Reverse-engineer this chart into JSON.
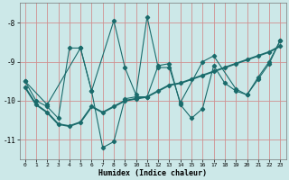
{
  "xlabel": "Humidex (Indice chaleur)",
  "bg_color": "#cce8e8",
  "grid_color": "#d09090",
  "line_color": "#1a6b6b",
  "xlim": [
    -0.5,
    23.5
  ],
  "ylim": [
    -11.5,
    -7.5
  ],
  "yticks": [
    -11,
    -10,
    -9,
    -8
  ],
  "xticks": [
    0,
    1,
    2,
    3,
    4,
    5,
    6,
    7,
    8,
    9,
    10,
    11,
    12,
    13,
    14,
    15,
    16,
    17,
    18,
    19,
    20,
    21,
    22,
    23
  ],
  "series1_x": [
    0,
    1,
    2,
    3,
    4,
    5,
    6,
    7,
    8,
    9,
    10,
    11,
    12,
    13,
    14,
    15,
    16,
    17,
    18,
    19,
    20,
    21,
    22,
    23
  ],
  "series1_y": [
    -9.5,
    -10.0,
    -10.15,
    -10.45,
    -8.65,
    -8.65,
    -9.75,
    -11.2,
    -11.05,
    -9.95,
    -9.9,
    -9.9,
    -9.1,
    -9.05,
    -10.1,
    -10.45,
    -10.2,
    -9.1,
    -9.55,
    -9.75,
    -9.85,
    -9.45,
    -9.05,
    -8.45
  ],
  "series2_x": [
    0,
    1,
    2,
    3,
    4,
    5,
    6,
    7,
    8,
    9,
    10,
    11,
    12,
    13,
    14,
    15,
    16,
    17,
    18,
    19,
    20,
    21,
    22,
    23
  ],
  "series2_y": [
    -9.65,
    -10.1,
    -10.3,
    -10.6,
    -10.65,
    -10.55,
    -10.15,
    -10.3,
    -10.15,
    -10.0,
    -9.95,
    -9.9,
    -9.75,
    -9.6,
    -9.55,
    -9.45,
    -9.35,
    -9.25,
    -9.15,
    -9.05,
    -8.95,
    -8.85,
    -8.75,
    -8.6
  ],
  "series3_x": [
    0,
    2,
    5,
    6,
    8,
    9,
    10,
    11,
    12,
    13,
    14,
    16,
    17,
    19,
    20,
    21,
    22,
    23
  ],
  "series3_y": [
    -9.5,
    -10.1,
    -8.65,
    -9.75,
    -7.95,
    -9.15,
    -9.85,
    -7.85,
    -9.15,
    -9.15,
    -10.05,
    -9.0,
    -8.85,
    -9.7,
    -9.85,
    -9.4,
    -9.0,
    -8.45
  ]
}
